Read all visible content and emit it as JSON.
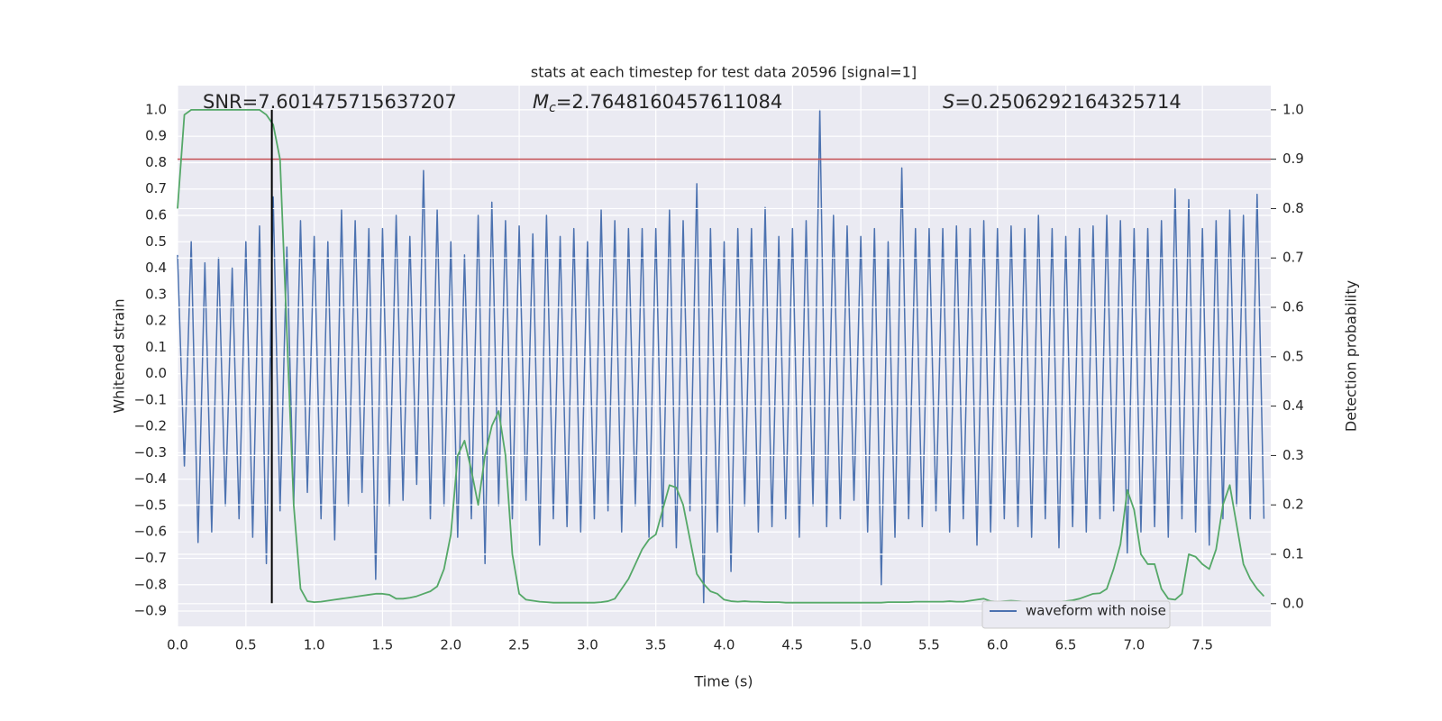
{
  "chart_data": {
    "type": "line",
    "title": "stats at each timestep for test data 20596 [signal=1]",
    "xlabel": "Time (s)",
    "ylabel": "Whitened strain",
    "y2label": "Detection probability",
    "xlim": [
      0,
      8.0
    ],
    "ylim": [
      -0.958,
      1.092
    ],
    "y2lim": [
      -0.046,
      1.049
    ],
    "xticks": [
      {
        "value": 0,
        "label": "0.0"
      },
      {
        "value": 0.5,
        "label": "0.5"
      },
      {
        "value": 1,
        "label": "1.0"
      },
      {
        "value": 1.5,
        "label": "1.5"
      },
      {
        "value": 2,
        "label": "2.0"
      },
      {
        "value": 2.5,
        "label": "2.5"
      },
      {
        "value": 3,
        "label": "3.0"
      },
      {
        "value": 3.5,
        "label": "3.5"
      },
      {
        "value": 4,
        "label": "4.0"
      },
      {
        "value": 4.5,
        "label": "4.5"
      },
      {
        "value": 5,
        "label": "5.0"
      },
      {
        "value": 5.5,
        "label": "5.5"
      },
      {
        "value": 6,
        "label": "6.0"
      },
      {
        "value": 6.5,
        "label": "6.5"
      },
      {
        "value": 7,
        "label": "7.0"
      },
      {
        "value": 7.5,
        "label": "7.5"
      }
    ],
    "yticks": [
      {
        "value": 1,
        "label": "1.0"
      },
      {
        "value": 0.9,
        "label": "0.9"
      },
      {
        "value": 0.8,
        "label": "0.8"
      },
      {
        "value": 0.7,
        "label": "0.7"
      },
      {
        "value": 0.6,
        "label": "0.6"
      },
      {
        "value": 0.5,
        "label": "0.5"
      },
      {
        "value": 0.4,
        "label": "0.4"
      },
      {
        "value": 0.3,
        "label": "0.3"
      },
      {
        "value": 0.2,
        "label": "0.2"
      },
      {
        "value": 0.1,
        "label": "0.1"
      },
      {
        "value": 0,
        "label": "0.0"
      },
      {
        "value": -0.1,
        "label": "−0.1"
      },
      {
        "value": -0.2,
        "label": "−0.2"
      },
      {
        "value": -0.3,
        "label": "−0.3"
      },
      {
        "value": -0.4,
        "label": "−0.4"
      },
      {
        "value": -0.5,
        "label": "−0.5"
      },
      {
        "value": -0.6,
        "label": "−0.6"
      },
      {
        "value": -0.7,
        "label": "−0.7"
      },
      {
        "value": -0.8,
        "label": "−0.8"
      },
      {
        "value": -0.9,
        "label": "−0.9"
      }
    ],
    "y2ticks": [
      {
        "value": 1,
        "label": "1.0"
      },
      {
        "value": 0.9,
        "label": "0.9"
      },
      {
        "value": 0.8,
        "label": "0.8"
      },
      {
        "value": 0.7,
        "label": "0.7"
      },
      {
        "value": 0.6,
        "label": "0.6"
      },
      {
        "value": 0.5,
        "label": "0.5"
      },
      {
        "value": 0.4,
        "label": "0.4"
      },
      {
        "value": 0.3,
        "label": "0.3"
      },
      {
        "value": 0.2,
        "label": "0.2"
      },
      {
        "value": 0.1,
        "label": "0.1"
      },
      {
        "value": 0,
        "label": "0.0"
      }
    ],
    "grid": true,
    "legend": "lower right",
    "x": [
      0,
      0.05,
      0.1,
      0.15,
      0.2,
      0.25,
      0.3,
      0.35,
      0.4,
      0.45,
      0.5,
      0.55,
      0.6,
      0.65,
      0.7,
      0.75,
      0.8,
      0.85,
      0.9,
      0.95,
      1,
      1.05,
      1.1,
      1.15,
      1.2,
      1.25,
      1.3,
      1.35,
      1.4,
      1.45,
      1.5,
      1.55,
      1.6,
      1.65,
      1.7,
      1.75,
      1.8,
      1.85,
      1.9,
      1.95,
      2,
      2.05,
      2.1,
      2.15,
      2.2,
      2.25,
      2.3,
      2.35,
      2.4,
      2.45,
      2.5,
      2.55,
      2.6,
      2.65,
      2.7,
      2.75,
      2.8,
      2.85,
      2.9,
      2.95,
      3,
      3.05,
      3.1,
      3.15,
      3.2,
      3.25,
      3.3,
      3.35,
      3.4,
      3.45,
      3.5,
      3.55,
      3.6,
      3.65,
      3.7,
      3.75,
      3.8,
      3.85,
      3.9,
      3.95,
      4,
      4.05,
      4.1,
      4.15,
      4.2,
      4.25,
      4.3,
      4.35,
      4.4,
      4.45,
      4.5,
      4.55,
      4.6,
      4.65,
      4.7,
      4.75,
      4.8,
      4.85,
      4.9,
      4.95,
      5,
      5.05,
      5.1,
      5.15,
      5.2,
      5.25,
      5.3,
      5.35,
      5.4,
      5.45,
      5.5,
      5.55,
      5.6,
      5.65,
      5.7,
      5.75,
      5.8,
      5.85,
      5.9,
      5.95,
      6,
      6.05,
      6.1,
      6.15,
      6.2,
      6.25,
      6.3,
      6.35,
      6.4,
      6.45,
      6.5,
      6.55,
      6.6,
      6.65,
      6.7,
      6.75,
      6.8,
      6.85,
      6.9,
      6.95,
      7,
      7.05,
      7.1,
      7.15,
      7.2,
      7.25,
      7.3,
      7.35,
      7.4,
      7.45,
      7.5,
      7.55,
      7.6,
      7.65,
      7.7,
      7.75,
      7.8,
      7.85,
      7.9,
      7.95
    ],
    "series": [
      {
        "name": "waveform with noise",
        "color": "#4c72b0",
        "values": [
          0.45,
          -0.35,
          0.5,
          -0.64,
          0.42,
          -0.6,
          0.44,
          -0.5,
          0.4,
          -0.55,
          0.5,
          -0.62,
          0.56,
          -0.72,
          0.67,
          -0.52,
          0.48,
          -0.5,
          0.58,
          -0.45,
          0.52,
          -0.55,
          0.5,
          -0.63,
          0.62,
          -0.5,
          0.58,
          -0.45,
          0.55,
          -0.78,
          0.55,
          -0.5,
          0.6,
          -0.48,
          0.52,
          -0.42,
          0.77,
          -0.55,
          0.62,
          -0.5,
          0.5,
          -0.62,
          0.45,
          -0.55,
          0.6,
          -0.72,
          0.65,
          -0.5,
          0.58,
          -0.55,
          0.56,
          -0.48,
          0.53,
          -0.65,
          0.6,
          -0.55,
          0.52,
          -0.58,
          0.55,
          -0.6,
          0.5,
          -0.55,
          0.62,
          -0.52,
          0.58,
          -0.6,
          0.55,
          -0.5,
          0.55,
          -0.62,
          0.55,
          -0.58,
          0.62,
          -0.66,
          0.58,
          -0.52,
          0.72,
          -0.87,
          0.55,
          -0.6,
          0.5,
          -0.75,
          0.55,
          -0.5,
          0.55,
          -0.6,
          0.63,
          -0.58,
          0.52,
          -0.55,
          0.55,
          -0.62,
          0.58,
          -0.5,
          1.0,
          -0.58,
          0.6,
          -0.55,
          0.56,
          -0.48,
          0.52,
          -0.6,
          0.55,
          -0.8,
          0.5,
          -0.62,
          0.78,
          -0.55,
          0.55,
          -0.58,
          0.55,
          -0.52,
          0.55,
          -0.6,
          0.56,
          -0.55,
          0.55,
          -0.65,
          0.58,
          -0.6,
          0.55,
          -0.55,
          0.56,
          -0.58,
          0.55,
          -0.62,
          0.6,
          -0.55,
          0.55,
          -0.66,
          0.52,
          -0.58,
          0.55,
          -0.6,
          0.56,
          -0.55,
          0.6,
          -0.52,
          0.58,
          -0.68,
          0.55,
          -0.6,
          0.55,
          -0.58,
          0.58,
          -0.62,
          0.7,
          -0.55,
          0.66,
          -0.6,
          0.55,
          -0.65,
          0.58,
          -0.55,
          0.62,
          -0.5,
          0.6,
          -0.55,
          0.68,
          -0.55
        ]
      },
      {
        "color": "#55a868",
        "axis": "y2",
        "values": [
          0.8,
          0.99,
          1.0,
          1.0,
          1.0,
          1.0,
          1.0,
          1.0,
          1.0,
          1.0,
          1.0,
          1.0,
          1.0,
          0.99,
          0.97,
          0.9,
          0.55,
          0.2,
          0.03,
          0.005,
          0.003,
          0.004,
          0.006,
          0.008,
          0.01,
          0.012,
          0.014,
          0.016,
          0.018,
          0.02,
          0.02,
          0.018,
          0.01,
          0.01,
          0.012,
          0.015,
          0.02,
          0.025,
          0.035,
          0.07,
          0.14,
          0.3,
          0.33,
          0.27,
          0.2,
          0.3,
          0.36,
          0.39,
          0.3,
          0.1,
          0.02,
          0.008,
          0.006,
          0.004,
          0.003,
          0.002,
          0.002,
          0.002,
          0.002,
          0.002,
          0.002,
          0.002,
          0.003,
          0.005,
          0.01,
          0.03,
          0.05,
          0.08,
          0.11,
          0.13,
          0.14,
          0.19,
          0.24,
          0.235,
          0.2,
          0.13,
          0.06,
          0.04,
          0.025,
          0.02,
          0.008,
          0.005,
          0.004,
          0.005,
          0.004,
          0.004,
          0.003,
          0.003,
          0.003,
          0.002,
          0.002,
          0.002,
          0.002,
          0.002,
          0.002,
          0.002,
          0.002,
          0.002,
          0.002,
          0.002,
          0.002,
          0.002,
          0.002,
          0.002,
          0.003,
          0.003,
          0.003,
          0.003,
          0.004,
          0.004,
          0.004,
          0.004,
          0.004,
          0.005,
          0.004,
          0.004,
          0.006,
          0.008,
          0.01,
          0.005,
          0.004,
          0.005,
          0.006,
          0.005,
          0.004,
          0.003,
          0.004,
          0.004,
          0.004,
          0.004,
          0.005,
          0.007,
          0.01,
          0.015,
          0.02,
          0.021,
          0.03,
          0.07,
          0.12,
          0.23,
          0.19,
          0.1,
          0.08,
          0.08,
          0.03,
          0.01,
          0.008,
          0.02,
          0.1,
          0.095,
          0.08,
          0.07,
          0.11,
          0.2,
          0.24,
          0.16,
          0.08,
          0.05,
          0.03,
          0.015
        ]
      }
    ],
    "hline": {
      "y": 0.9,
      "axis": "y2",
      "color": "#c44e52"
    },
    "vline": {
      "x": 0.69,
      "ymin": -0.87,
      "ymax": 1.0,
      "color": "#000000"
    },
    "annotations": [
      {
        "text": "SNR=7.601475715637207"
      },
      {
        "symbol": "M",
        "subscript": "c",
        "text": "=2.7648160457611084"
      },
      {
        "symbol": "S",
        "text": "=0.2506292164325714"
      }
    ]
  }
}
